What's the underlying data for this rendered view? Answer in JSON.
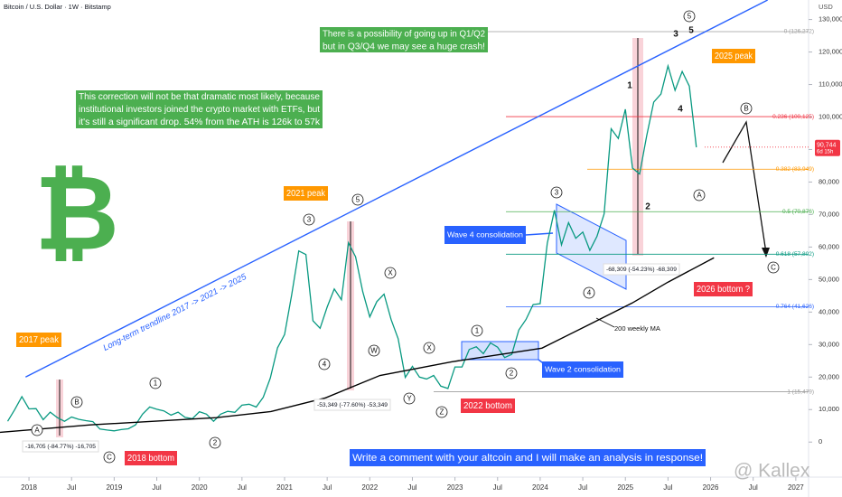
{
  "chart_data": {
    "type": "line",
    "title": "Bitcoin / U.S. Dollar · 1W · Bitstamp",
    "y_axis_unit": "USD",
    "xlim": [
      2017.66,
      2027.15
    ],
    "ylim": [
      -8000,
      136000
    ],
    "xticks": [
      {
        "value": 2018,
        "label": "2018"
      },
      {
        "value": 2018.5,
        "label": "Jul"
      },
      {
        "value": 2019,
        "label": "2019"
      },
      {
        "value": 2019.5,
        "label": "Jul"
      },
      {
        "value": 2020,
        "label": "2020"
      },
      {
        "value": 2020.5,
        "label": "Jul"
      },
      {
        "value": 2021,
        "label": "2021"
      },
      {
        "value": 2021.5,
        "label": "Jul"
      },
      {
        "value": 2022,
        "label": "2022"
      },
      {
        "value": 2022.5,
        "label": "Jul"
      },
      {
        "value": 2023,
        "label": "2023"
      },
      {
        "value": 2023.5,
        "label": "Jul"
      },
      {
        "value": 2024,
        "label": "2024"
      },
      {
        "value": 2024.5,
        "label": "Jul"
      },
      {
        "value": 2025,
        "label": "2025"
      },
      {
        "value": 2025.5,
        "label": "Jul"
      },
      {
        "value": 2026,
        "label": "2026"
      },
      {
        "value": 2026.5,
        "label": "Jul"
      },
      {
        "value": 2027,
        "label": "2027"
      }
    ],
    "yticks": [
      0,
      {
        "value": 10000,
        "label": "10,000"
      },
      {
        "value": 20000,
        "label": "20,000"
      },
      {
        "value": 30000,
        "label": "30,000"
      },
      {
        "value": 40000,
        "label": "40,000"
      },
      {
        "value": 50000,
        "label": "50,000"
      },
      {
        "value": 60000,
        "label": "60,000"
      },
      {
        "value": 70000,
        "label": "70,000"
      },
      {
        "value": 80000,
        "label": "80,000"
      },
      {
        "value": 90000,
        "label": "90,000"
      },
      {
        "value": 100000,
        "label": "100,000"
      },
      {
        "value": 110000,
        "label": "110,000"
      },
      {
        "value": 120000,
        "label": "120,000"
      },
      {
        "value": 130000,
        "label": "130,000"
      }
    ],
    "series": [
      {
        "name": "Bitcoin",
        "color": "#089981",
        "x": [
          2017.75,
          2017.833,
          2017.917,
          2018.0,
          2018.083,
          2018.167,
          2018.25,
          2018.333,
          2018.417,
          2018.5,
          2018.583,
          2018.667,
          2018.75,
          2018.833,
          2018.917,
          2019.0,
          2019.083,
          2019.167,
          2019.25,
          2019.333,
          2019.417,
          2019.5,
          2019.583,
          2019.667,
          2019.75,
          2019.833,
          2019.917,
          2020.0,
          2020.083,
          2020.167,
          2020.25,
          2020.333,
          2020.417,
          2020.5,
          2020.583,
          2020.667,
          2020.75,
          2020.833,
          2020.917,
          2021.0,
          2021.083,
          2021.167,
          2021.25,
          2021.333,
          2021.417,
          2021.5,
          2021.583,
          2021.667,
          2021.75,
          2021.833,
          2021.917,
          2022.0,
          2022.083,
          2022.167,
          2022.25,
          2022.333,
          2022.417,
          2022.5,
          2022.583,
          2022.667,
          2022.75,
          2022.833,
          2022.917,
          2023.0,
          2023.083,
          2023.167,
          2023.25,
          2023.333,
          2023.417,
          2023.5,
          2023.583,
          2023.667,
          2023.75,
          2023.833,
          2023.917,
          2024.0,
          2024.083,
          2024.167,
          2024.25,
          2024.333,
          2024.417,
          2024.5,
          2024.583,
          2024.667,
          2024.75,
          2024.833,
          2024.917,
          2025.0,
          2025.083,
          2025.167,
          2025.25,
          2025.333,
          2025.417,
          2025.5,
          2025.583,
          2025.667,
          2025.75,
          2025.833
        ],
        "values": [
          6400,
          10000,
          14000,
          10200,
          10300,
          6900,
          9200,
          7500,
          6400,
          7700,
          7000,
          6600,
          6300,
          4000,
          3700,
          3450,
          3850,
          4100,
          5300,
          8600,
          10800,
          10100,
          9600,
          8300,
          9200,
          7600,
          7200,
          9350,
          8600,
          6400,
          8600,
          9450,
          9140,
          11350,
          11650,
          10780,
          13800,
          19700,
          29000,
          33100,
          45200,
          58800,
          57700,
          37300,
          35000,
          41500,
          47100,
          43800,
          61300,
          57000,
          46300,
          38500,
          43200,
          45500,
          37700,
          31800,
          19900,
          23300,
          20000,
          19400,
          20500,
          17200,
          16500,
          23100,
          23100,
          28500,
          29300,
          27200,
          30500,
          29200,
          26000,
          27000,
          34500,
          37700,
          42300,
          42600,
          61200,
          71300,
          60700,
          67500,
          62700,
          64600,
          59000,
          63300,
          70200,
          96400,
          93400,
          102400,
          84300,
          82500,
          94200,
          104600,
          107100,
          115700,
          108200,
          114000,
          109500,
          90700
        ]
      },
      {
        "name": "200 weekly MA",
        "color": "#000000",
        "x": [
          2017.66,
          2018.72,
          2020.2,
          2020.84,
          2021.48,
          2022.12,
          2022.96,
          2024.02,
          2024.55,
          2025.08,
          2025.5,
          2026.04
        ],
        "values": [
          3000,
          5300,
          7500,
          9400,
          13600,
          20500,
          24700,
          28900,
          35800,
          42800,
          49200,
          56700
        ]
      },
      {
        "name": "Long-term trendline 2017 -> 2021 -> 2025",
        "color": "#2962ff",
        "x": [
          2017.96,
          2026.67
        ],
        "values": [
          20000,
          136000
        ]
      }
    ],
    "fib_levels": [
      {
        "value": 126272,
        "label": "0 (126,272)",
        "color": "#9e9e9e"
      },
      {
        "value": 100125,
        "label": "0.236 (100,125)",
        "color": "#f23645"
      },
      {
        "value": 83949,
        "label": "0.382 (83,949)",
        "color": "#ff9800"
      },
      {
        "value": 70876,
        "label": "0.5 (70,876)",
        "color": "#4caf50"
      },
      {
        "value": 57802,
        "label": "0.618 (57,802)",
        "color": "#089981"
      },
      {
        "value": 41626,
        "label": "0.764 (41,626)",
        "color": "#2962ff"
      },
      {
        "value": 15479,
        "label": "1 (15,479)",
        "color": "#9e9e9e"
      }
    ],
    "last_price": {
      "value": 90744,
      "label": "90,744"
    },
    "countdown": "6d 15h",
    "annotations": {
      "forecast_note": [
        "There is a possibility of going up in Q1/Q2",
        "but in Q3/Q4 we may see a huge crash!"
      ],
      "correction_note": [
        "This correction will not be that dramatic most likely, because",
        "institutional investors joined the crypto market with ETFs, but",
        "it's still a significant drop. 54% from the ATH is 126k to 57k"
      ],
      "peaks": [
        "2017 peak",
        "2021 peak",
        "2025 peak"
      ],
      "bottoms": [
        "2018 bottom",
        "2022 bottom",
        "2026 bottom ?"
      ],
      "wave4": "Wave 4 consolidation",
      "wave2": "Wave 2 consolidation",
      "cta": "Write a comment with your altcoin and I will make an analysis in response!",
      "drawdowns": [
        "-16,705 (-84.77%) -16,705",
        "-53,349 (-77.60%) -53,349",
        "-68,309 (-54.23%) -68,309"
      ],
      "circled_waves": [
        "A",
        "B",
        "C",
        "1",
        "2",
        "3",
        "4",
        "5",
        "X",
        "W",
        "X",
        "Y",
        "Z",
        "1",
        "2",
        "3",
        "4",
        "5",
        "A",
        "B",
        "C"
      ],
      "waves": [
        "1",
        "2",
        "3",
        "4",
        "5"
      ],
      "watermark": "@ Kallex",
      "logo": "₿"
    }
  }
}
